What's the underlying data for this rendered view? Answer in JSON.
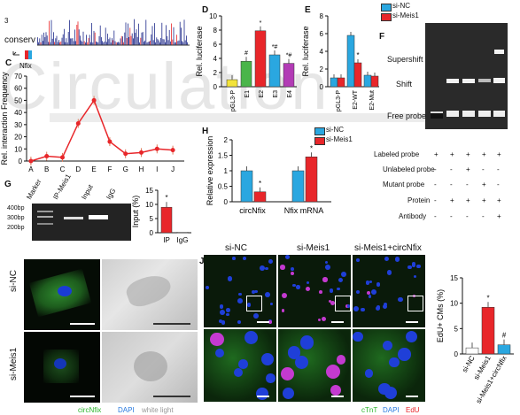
{
  "panels": {
    "A": {
      "track_label": "conserv",
      "track_max": "3",
      "gene_label": "Nfix"
    },
    "C": {
      "letter": "C"
    },
    "D": {
      "letter": "D"
    },
    "E": {
      "letter": "E"
    },
    "F": {
      "letter": "F",
      "bands": [
        "Supershift",
        "Shift",
        "Free probe"
      ],
      "rows": [
        "Labeled probe",
        "Unlabeled probe",
        "Mutant probe",
        "Protein",
        "Antibody"
      ],
      "row_marks": [
        [
          "+",
          "+",
          "+",
          "+",
          "+"
        ],
        [
          "-",
          "-",
          "+",
          "-",
          "-"
        ],
        [
          "-",
          "-",
          "-",
          "+",
          "-"
        ],
        [
          "-",
          "+",
          "+",
          "+",
          "+"
        ],
        [
          "-",
          "-",
          "-",
          "-",
          "+"
        ]
      ]
    },
    "G": {
      "letter": "G",
      "lane_labels": [
        "Marker",
        "IP-Meis1",
        "Input",
        "IgG"
      ],
      "ladder": [
        "400bp",
        "300bp",
        "200bp"
      ]
    },
    "H": {
      "letter": "H"
    },
    "I": {
      "rows": [
        "si-NC",
        "si-Meis1"
      ],
      "legend": [
        "circNfix",
        "DAPI",
        "white light"
      ]
    },
    "J": {
      "letter": "J",
      "columns": [
        "si-NC",
        "si-Meis1",
        "si-Meis1+circNfix"
      ],
      "legend": [
        "cTnT",
        "DAPI",
        "EdU"
      ]
    }
  },
  "colors": {
    "red": "#e8262a",
    "blue": "#2aa7e0",
    "green": "#4ab54a",
    "yellow": "#f3e33a",
    "purple": "#b23bb5",
    "wm": "#e6e6e6"
  },
  "watermark": "Circulation",
  "chart_data": [
    {
      "type": "line",
      "panel": "C",
      "ylabel": "Rel. interaction Frequency",
      "categories": [
        "A",
        "B",
        "C",
        "D",
        "E",
        "F",
        "G",
        "H",
        "I",
        "J"
      ],
      "values": [
        0,
        4,
        3,
        31,
        50,
        16,
        6,
        7,
        10,
        9
      ],
      "ylim": [
        0,
        70
      ],
      "yticks": [
        0,
        10,
        20,
        30,
        40,
        50,
        60,
        70
      ]
    },
    {
      "type": "bar",
      "panel": "D",
      "ylabel": "Rel. luciferase",
      "categories": [
        "pGL3-P",
        "E1",
        "E2",
        "E3",
        "E4"
      ],
      "values": [
        1,
        3.6,
        7.9,
        4.5,
        3.3
      ],
      "ylim": [
        0,
        10
      ],
      "yticks": [
        0,
        2,
        4,
        6,
        8,
        10
      ],
      "annotations": [
        "",
        "#",
        "*",
        "*#",
        "*#"
      ],
      "colors": [
        "#f3e33a",
        "#4ab54a",
        "#e8262a",
        "#2aa7e0",
        "#b23bb5"
      ]
    },
    {
      "type": "bar",
      "panel": "E",
      "ylabel": "Rel. luciferase",
      "categories": [
        "pGL3-P",
        "E2-WT",
        "E2-Mut"
      ],
      "series": [
        {
          "name": "si-NC",
          "values": [
            1,
            5.8,
            1.3
          ]
        },
        {
          "name": "si-Meis1",
          "values": [
            1,
            2.7,
            1.2
          ]
        }
      ],
      "annotations": [
        "",
        "*",
        ""
      ],
      "ylim": [
        0,
        8
      ],
      "yticks": [
        0,
        2,
        4,
        6,
        8
      ]
    },
    {
      "type": "bar",
      "panel": "G",
      "ylabel": "Input (%)",
      "categories": [
        "IP",
        "IgG"
      ],
      "values": [
        9,
        0.2
      ],
      "ylim": [
        0,
        15
      ],
      "yticks": [
        0,
        5,
        10,
        15
      ],
      "annotations": [
        "*",
        ""
      ]
    },
    {
      "type": "bar",
      "panel": "H",
      "ylabel": "Relative expression",
      "categories": [
        "circNfix",
        "Nfix mRNA"
      ],
      "series": [
        {
          "name": "si-NC",
          "values": [
            1.0,
            1.0
          ]
        },
        {
          "name": "si-Meis1",
          "values": [
            0.32,
            1.45
          ]
        }
      ],
      "ylim": [
        0,
        2
      ],
      "yticks": [
        0,
        0.5,
        1,
        1.5,
        2
      ],
      "annotations": [
        "*",
        "*"
      ]
    },
    {
      "type": "bar",
      "panel": "J",
      "ylabel": "EdU+ CMs (%)",
      "categories": [
        "si-NC",
        "si-Meis1",
        "si-Meis1+circNfix"
      ],
      "values": [
        1.2,
        9.2,
        1.8
      ],
      "ylim": [
        0,
        15
      ],
      "yticks": [
        0,
        5,
        10,
        15
      ],
      "annotations": [
        "",
        "*",
        "#"
      ],
      "colors": [
        "#ffffff",
        "#e8262a",
        "#2aa7e0"
      ]
    }
  ]
}
